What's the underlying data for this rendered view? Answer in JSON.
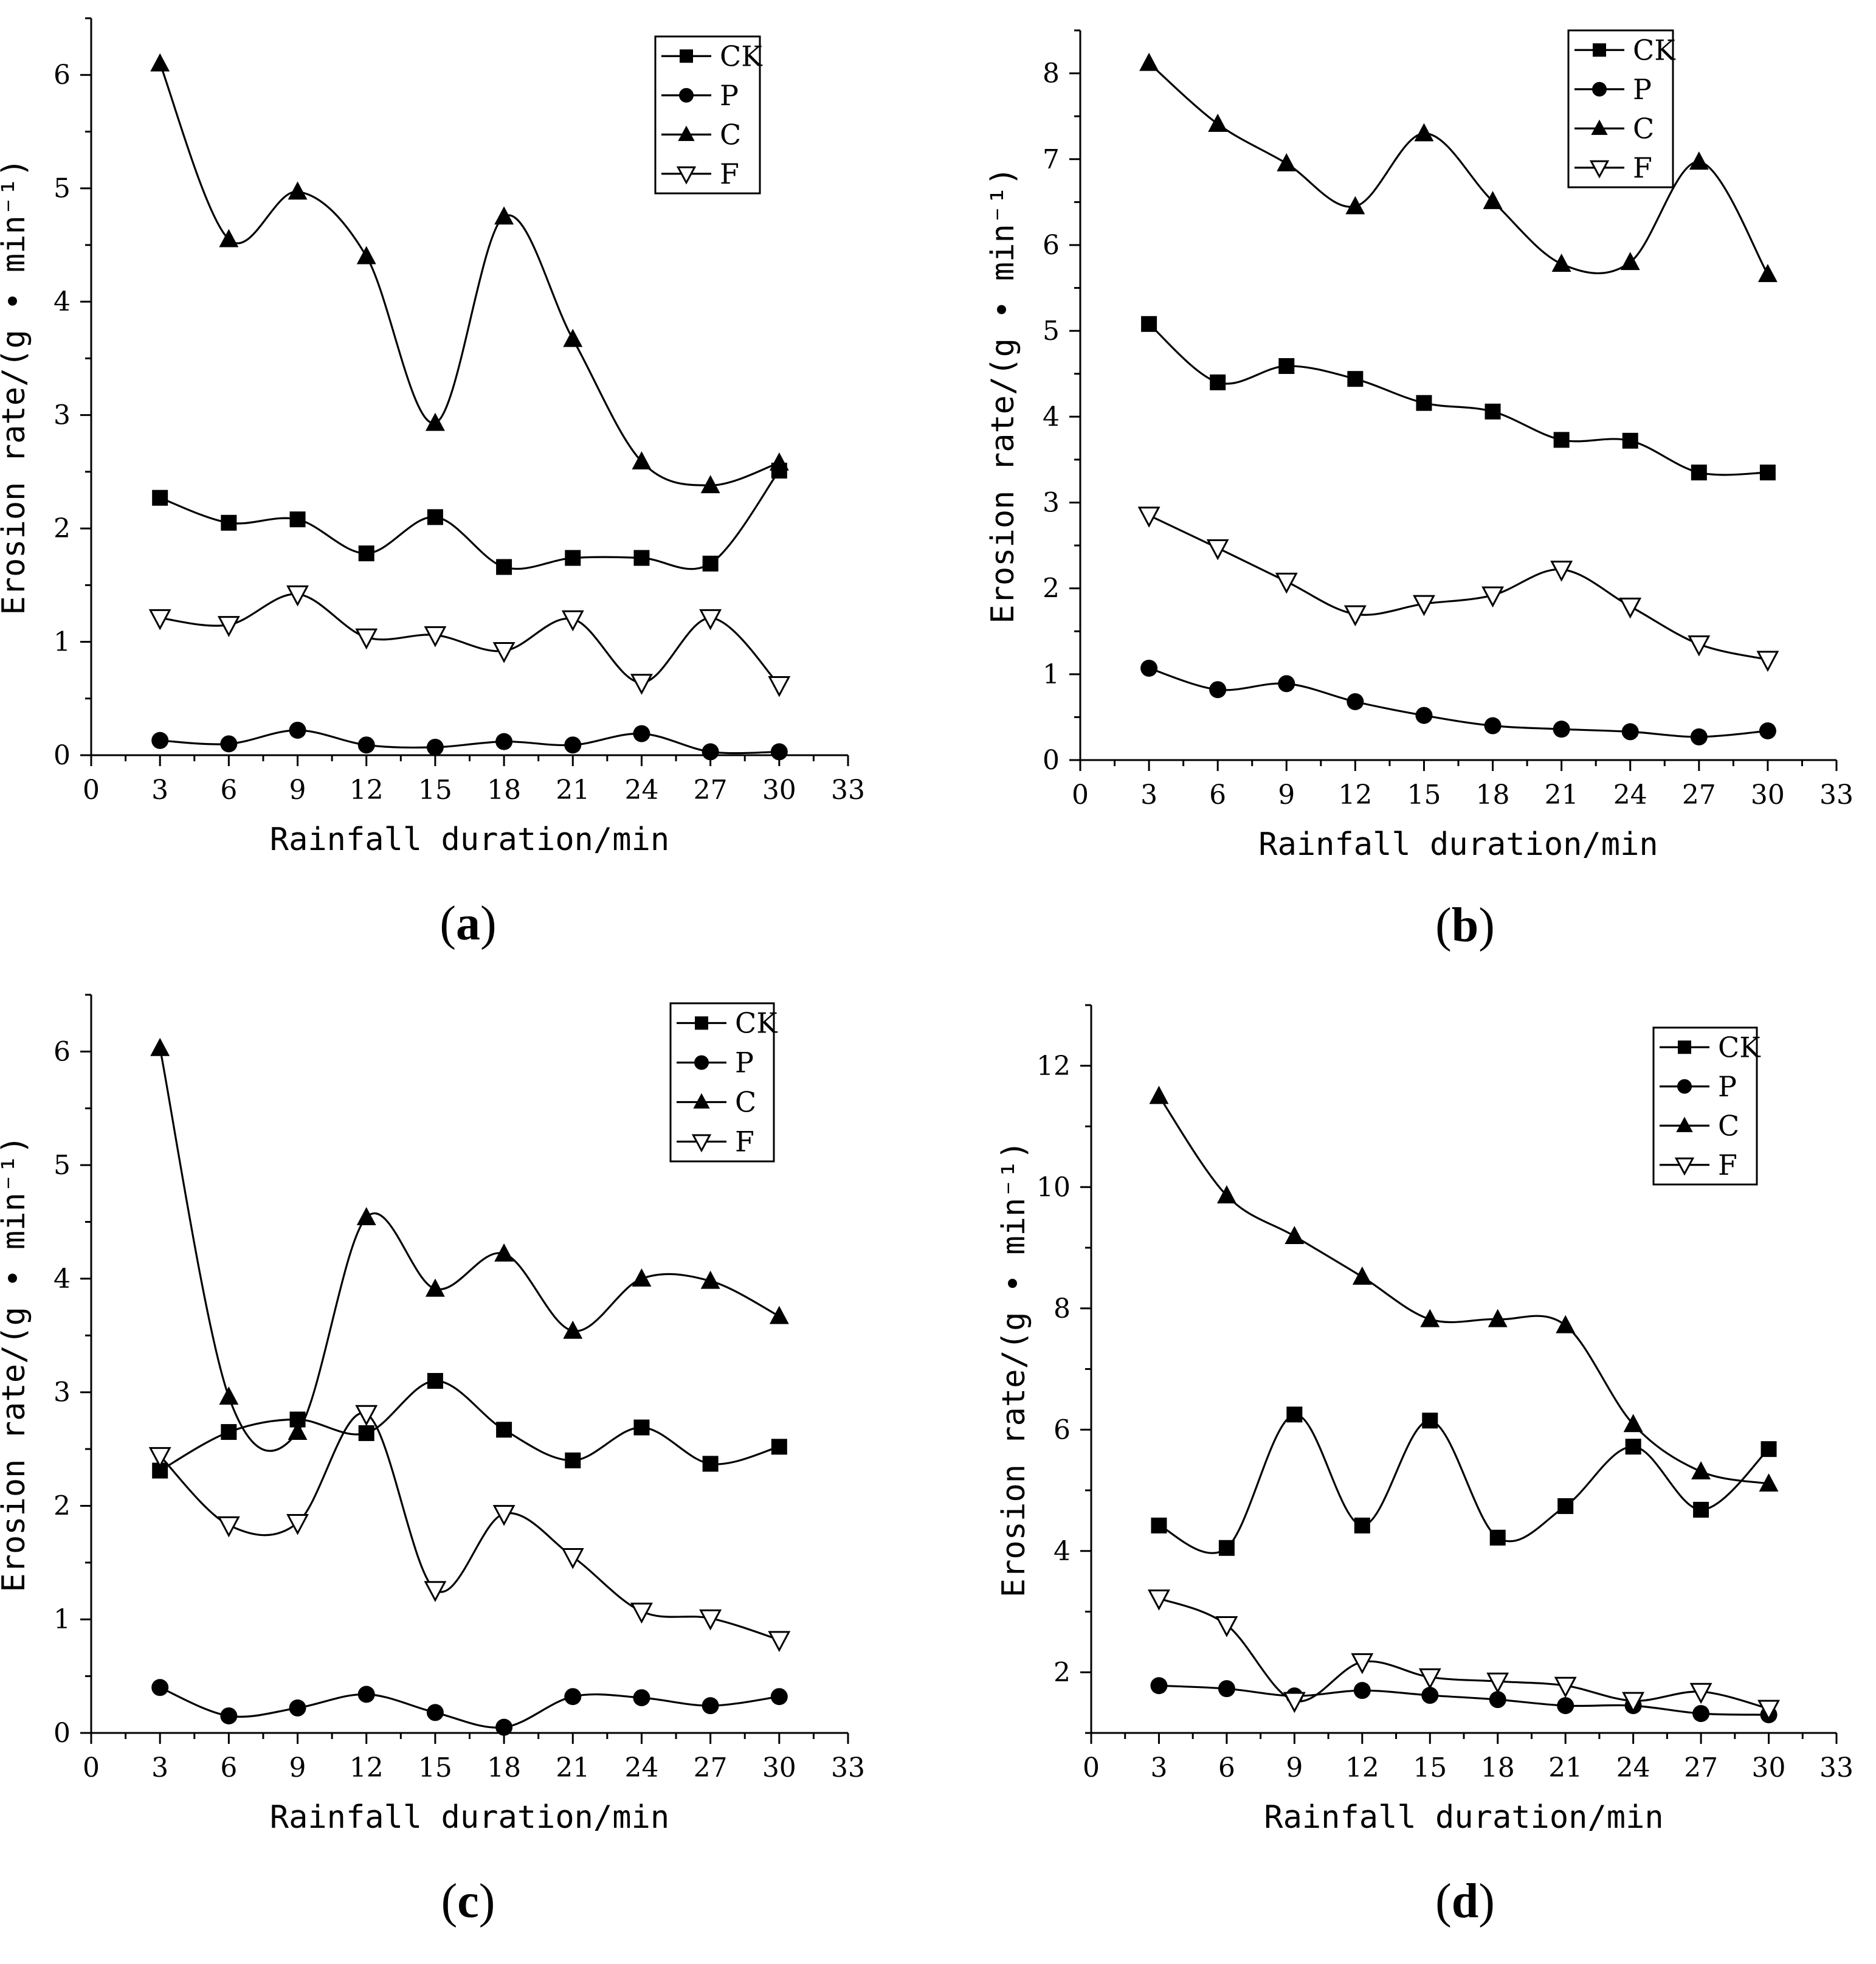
{
  "chart_data": [
    {
      "panel_label": "a",
      "type": "line",
      "xlabel": "Rainfall duration/min",
      "ylabel": "Erosion rate/(g • min⁻¹)",
      "xlim": [
        0,
        33
      ],
      "ylim": [
        0,
        6.5
      ],
      "xticks": [
        0,
        3,
        6,
        9,
        12,
        15,
        18,
        21,
        24,
        27,
        30,
        33
      ],
      "yticks": [
        0,
        1,
        2,
        3,
        4,
        5,
        6
      ],
      "legend_position": "top-right",
      "x": [
        3,
        6,
        9,
        12,
        15,
        18,
        21,
        24,
        27,
        30
      ],
      "series": [
        {
          "name": "CK",
          "marker": "square",
          "values": [
            2.27,
            2.05,
            2.08,
            1.78,
            2.1,
            1.66,
            1.74,
            1.74,
            1.69,
            2.51
          ]
        },
        {
          "name": "P",
          "marker": "circle",
          "values": [
            0.13,
            0.1,
            0.22,
            0.09,
            0.07,
            0.12,
            0.09,
            0.19,
            0.03,
            0.03
          ]
        },
        {
          "name": "C",
          "marker": "triangle-up",
          "values": [
            6.1,
            4.55,
            4.97,
            4.4,
            2.93,
            4.75,
            3.67,
            2.59,
            2.38,
            2.58
          ]
        },
        {
          "name": "F",
          "marker": "triangle-down-open",
          "values": [
            1.21,
            1.15,
            1.42,
            1.04,
            1.06,
            0.92,
            1.2,
            0.64,
            1.21,
            0.62
          ]
        }
      ]
    },
    {
      "panel_label": "b",
      "type": "line",
      "xlabel": "Rainfall duration/min",
      "ylabel": "Erosion rate/(g • min⁻¹)",
      "xlim": [
        0,
        33
      ],
      "ylim": [
        0,
        8.5
      ],
      "xticks": [
        0,
        3,
        6,
        9,
        12,
        15,
        18,
        21,
        24,
        27,
        30,
        33
      ],
      "yticks": [
        0,
        1,
        2,
        3,
        4,
        5,
        6,
        7,
        8
      ],
      "legend_position": "top-right",
      "x": [
        3,
        6,
        9,
        12,
        15,
        18,
        21,
        24,
        27,
        30
      ],
      "series": [
        {
          "name": "CK",
          "marker": "square",
          "values": [
            5.08,
            4.4,
            4.59,
            4.44,
            4.16,
            4.06,
            3.73,
            3.72,
            3.35,
            3.35
          ]
        },
        {
          "name": "P",
          "marker": "circle",
          "values": [
            1.07,
            0.82,
            0.89,
            0.68,
            0.52,
            0.4,
            0.36,
            0.33,
            0.27,
            0.34
          ]
        },
        {
          "name": "C",
          "marker": "triangle-up",
          "values": [
            8.12,
            7.41,
            6.95,
            6.45,
            7.3,
            6.51,
            5.78,
            5.8,
            6.97,
            5.66
          ]
        },
        {
          "name": "F",
          "marker": "triangle-down-open",
          "values": [
            2.85,
            2.47,
            2.08,
            1.7,
            1.82,
            1.92,
            2.22,
            1.79,
            1.35,
            1.17
          ]
        }
      ]
    },
    {
      "panel_label": "c",
      "type": "line",
      "xlabel": "Rainfall duration/min",
      "ylabel": "Erosion rate/(g • min⁻¹)",
      "xlim": [
        0,
        33
      ],
      "ylim": [
        0,
        6.5
      ],
      "xticks": [
        0,
        3,
        6,
        9,
        12,
        15,
        18,
        21,
        24,
        27,
        30,
        33
      ],
      "yticks": [
        0,
        1,
        2,
        3,
        4,
        5,
        6
      ],
      "legend_position": "top-right",
      "x": [
        3,
        6,
        9,
        12,
        15,
        18,
        21,
        24,
        27,
        30
      ],
      "series": [
        {
          "name": "CK",
          "marker": "square",
          "values": [
            2.31,
            2.65,
            2.76,
            2.64,
            3.1,
            2.67,
            2.4,
            2.69,
            2.37,
            2.52
          ]
        },
        {
          "name": "P",
          "marker": "circle",
          "values": [
            0.4,
            0.15,
            0.22,
            0.34,
            0.18,
            0.05,
            0.32,
            0.31,
            0.24,
            0.32
          ]
        },
        {
          "name": "C",
          "marker": "triangle-up",
          "values": [
            6.03,
            2.96,
            2.65,
            4.54,
            3.91,
            4.22,
            3.54,
            4.0,
            3.98,
            3.67
          ]
        },
        {
          "name": "F",
          "marker": "triangle-down-open",
          "values": [
            2.44,
            1.83,
            1.85,
            2.81,
            1.26,
            1.93,
            1.55,
            1.07,
            1.01,
            0.82
          ]
        }
      ]
    },
    {
      "panel_label": "d",
      "type": "line",
      "xlabel": "Rainfall duration/min",
      "ylabel": "Erosion rate/(g • min⁻¹)",
      "xlim": [
        0,
        33
      ],
      "ylim": [
        1,
        13
      ],
      "xticks": [
        0,
        3,
        6,
        9,
        12,
        15,
        18,
        21,
        24,
        27,
        30,
        33
      ],
      "yticks": [
        2,
        4,
        6,
        8,
        10,
        12
      ],
      "legend_position": "top-right",
      "x": [
        3,
        6,
        9,
        12,
        15,
        18,
        21,
        24,
        27,
        30
      ],
      "series": [
        {
          "name": "CK",
          "marker": "square",
          "values": [
            4.42,
            4.05,
            6.25,
            4.42,
            6.15,
            4.22,
            4.74,
            5.72,
            4.68,
            5.68
          ]
        },
        {
          "name": "P",
          "marker": "circle",
          "values": [
            1.78,
            1.73,
            1.61,
            1.7,
            1.62,
            1.55,
            1.45,
            1.45,
            1.32,
            1.3
          ]
        },
        {
          "name": "C",
          "marker": "triangle-up",
          "values": [
            11.5,
            9.86,
            9.19,
            8.52,
            7.82,
            7.82,
            7.72,
            6.09,
            5.31,
            5.11
          ]
        },
        {
          "name": "F",
          "marker": "triangle-down-open",
          "values": [
            3.22,
            2.78,
            1.53,
            2.17,
            1.92,
            1.85,
            1.78,
            1.53,
            1.68,
            1.4
          ]
        }
      ]
    }
  ],
  "colors": {
    "line": "#000000",
    "background": "#ffffff"
  }
}
